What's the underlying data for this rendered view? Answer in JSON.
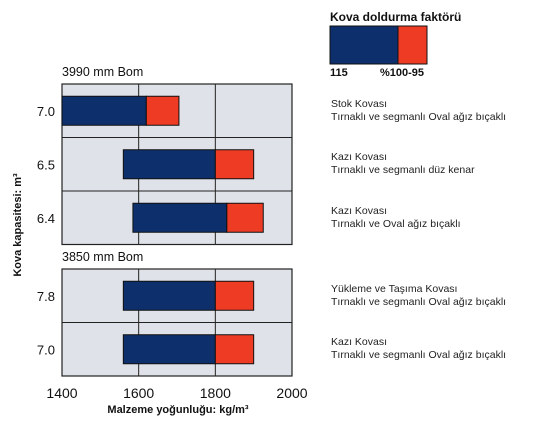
{
  "legend": {
    "title": "Kova doldurma faktörü",
    "left_label": "115",
    "right_label": "%100-95",
    "colors": {
      "primary": "#0d2f6b",
      "secondary": "#ee3b24"
    }
  },
  "chart_data": {
    "type": "bar",
    "orientation": "horizontal",
    "xlabel": "Malzeme yoğunluğu: kg/m³",
    "ylabel": "Kova kapasitesi: m³",
    "xlim": [
      1400,
      2000
    ],
    "xticks": [
      "1400",
      "1600",
      "1800",
      "2000"
    ],
    "grid": true,
    "colors": {
      "bar_115": "#0d2f6b",
      "bar_100_95": "#ee3b24",
      "panel": "#dfe2e8",
      "grid": "#222222"
    },
    "groups": [
      {
        "title": "3990 mm Bom",
        "rows": [
          {
            "capacity": "7.0",
            "start": 1400,
            "split": 1620,
            "end": 1705,
            "line1": "Stok Kovası",
            "line2": "Tırnaklı ve segmanlı Oval ağız bıçaklı"
          },
          {
            "capacity": "6.5",
            "start": 1560,
            "split": 1800,
            "end": 1900,
            "line1": "Kazı Kovası",
            "line2": "Tırnaklı ve segmanlı düz kenar"
          },
          {
            "capacity": "6.4",
            "start": 1585,
            "split": 1830,
            "end": 1925,
            "line1": "Kazı Kovası",
            "line2": "Tırnaklı ve Oval ağız bıçaklı"
          }
        ]
      },
      {
        "title": "3850 mm Bom",
        "rows": [
          {
            "capacity": "7.8",
            "start": 1560,
            "split": 1800,
            "end": 1900,
            "line1": "Yükleme ve Taşıma Kovası",
            "line2": "Tırnaklı ve segmanlı Oval ağız bıçaklı"
          },
          {
            "capacity": "7.0",
            "start": 1560,
            "split": 1800,
            "end": 1900,
            "line1": "Kazı Kovası",
            "line2": "Tırnaklı ve segmanlı Oval ağız bıçaklı"
          }
        ]
      }
    ]
  }
}
